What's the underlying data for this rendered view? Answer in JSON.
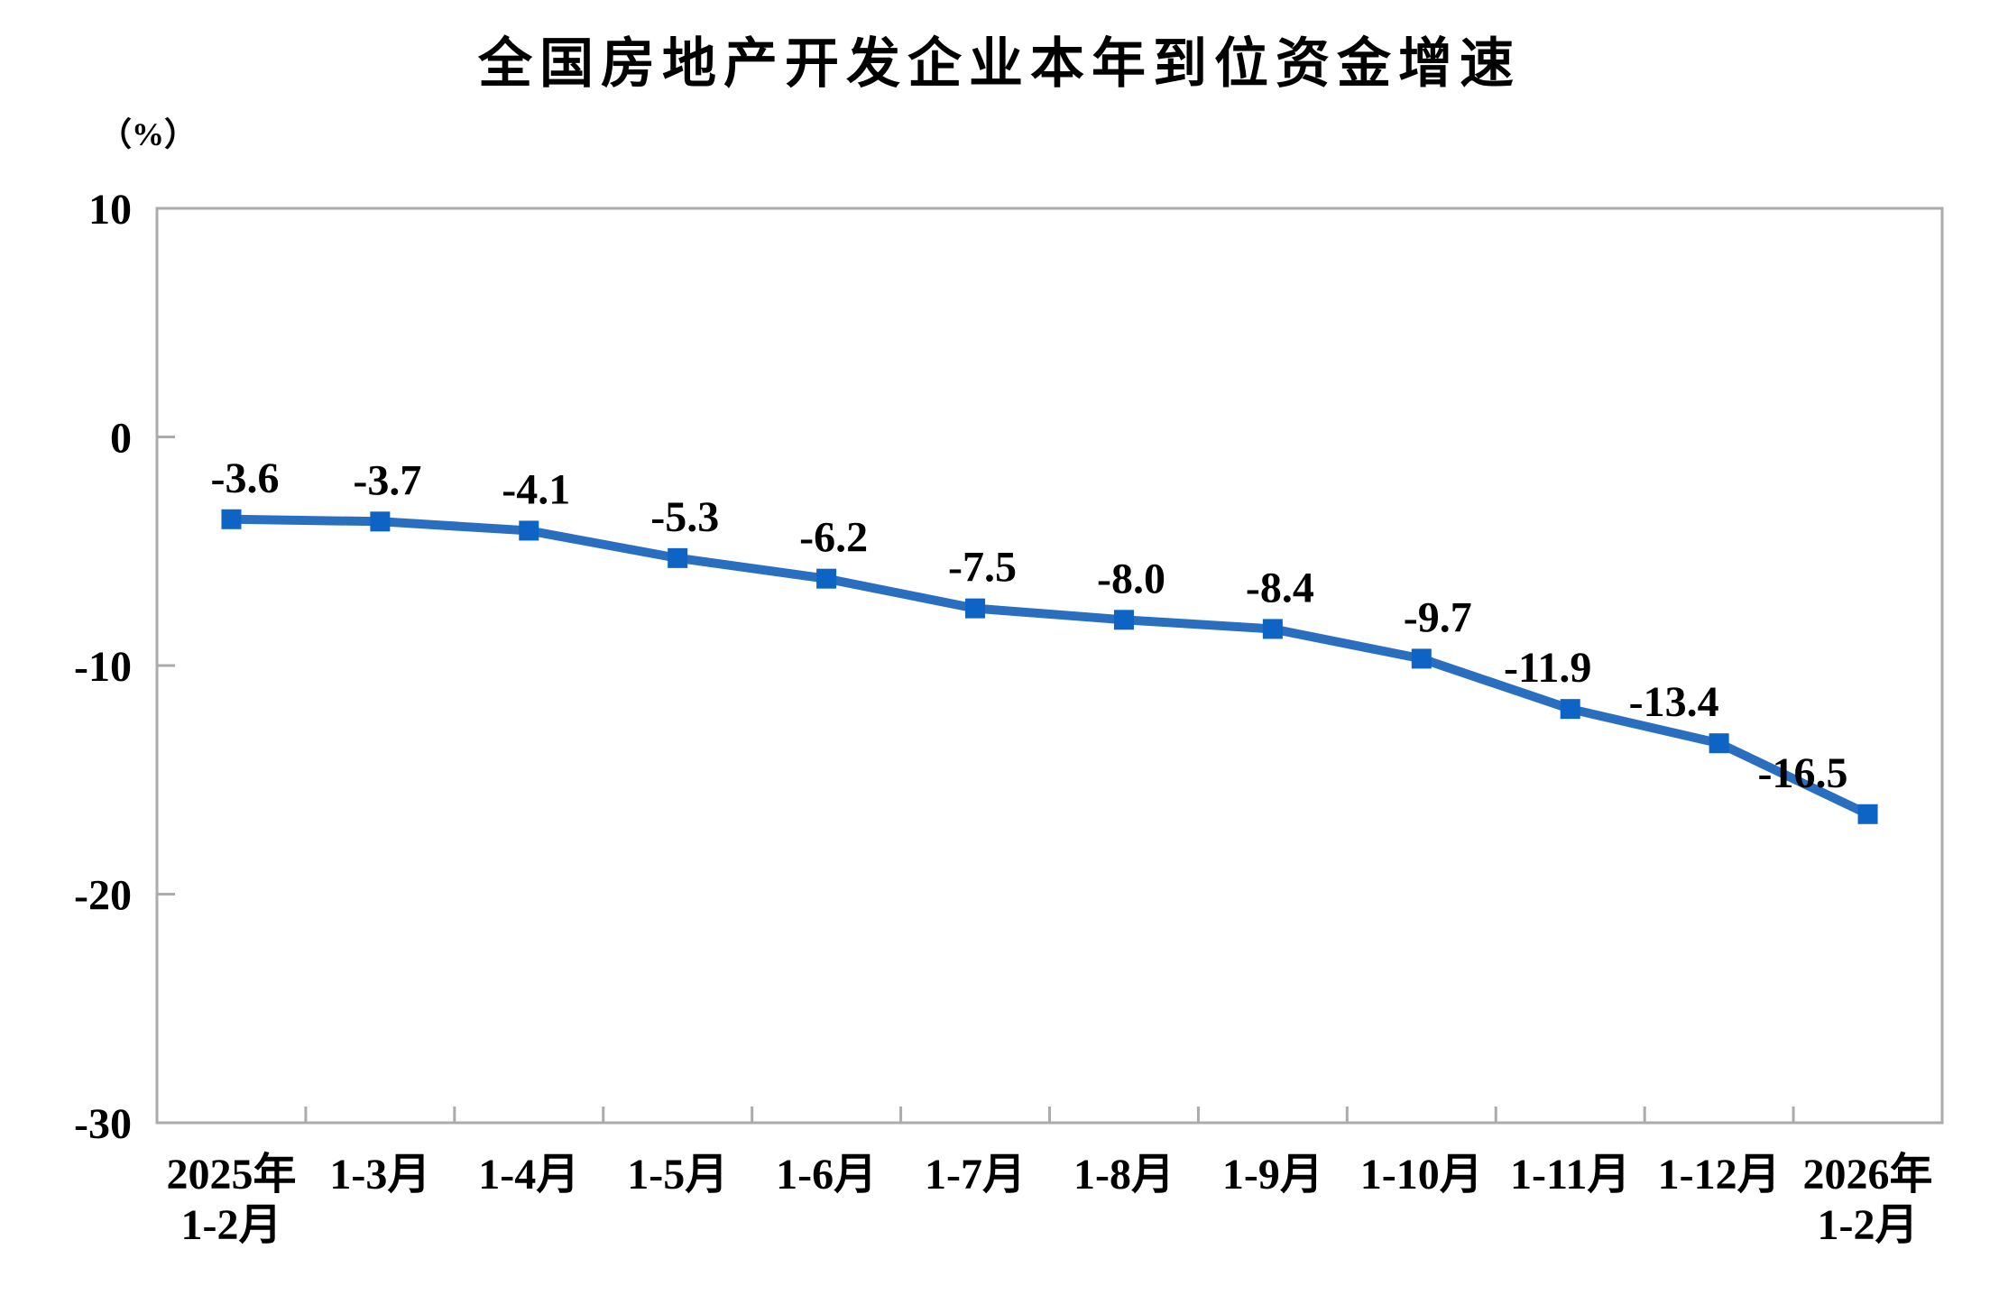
{
  "chart_data": {
    "type": "line",
    "title": "全国房地产开发企业本年到位资金增速",
    "unit_label": "（%）",
    "categories": [
      "2025年\n1-2月",
      "1-3月",
      "1-4月",
      "1-5月",
      "1-6月",
      "1-7月",
      "1-8月",
      "1-9月",
      "1-10月",
      "1-11月",
      "1-12月",
      "2026年\n1-2月"
    ],
    "values": [
      -3.6,
      -3.7,
      -4.1,
      -5.3,
      -6.2,
      -7.5,
      -8.0,
      -8.4,
      -9.7,
      -11.9,
      -13.4,
      -16.5
    ],
    "data_labels": [
      "-3.6",
      "-3.7",
      "-4.1",
      "-5.3",
      "-6.2",
      "-7.5",
      "-8.0",
      "-8.4",
      "-9.7",
      "-11.9",
      "-13.4",
      "-16.5"
    ],
    "y_ticks": [
      10,
      0,
      -10,
      -20,
      -30
    ],
    "y_tick_labels": [
      "10",
      "0",
      "-10",
      "-20",
      "-30"
    ],
    "ylim": [
      -30,
      10
    ],
    "grid": false,
    "legend": "none",
    "marker": "square",
    "colors": {
      "line": "#2A6FBF",
      "marker": "#0D64C4",
      "axis": "#ABABAB",
      "text": "#000000",
      "background": "#ffffff"
    }
  }
}
